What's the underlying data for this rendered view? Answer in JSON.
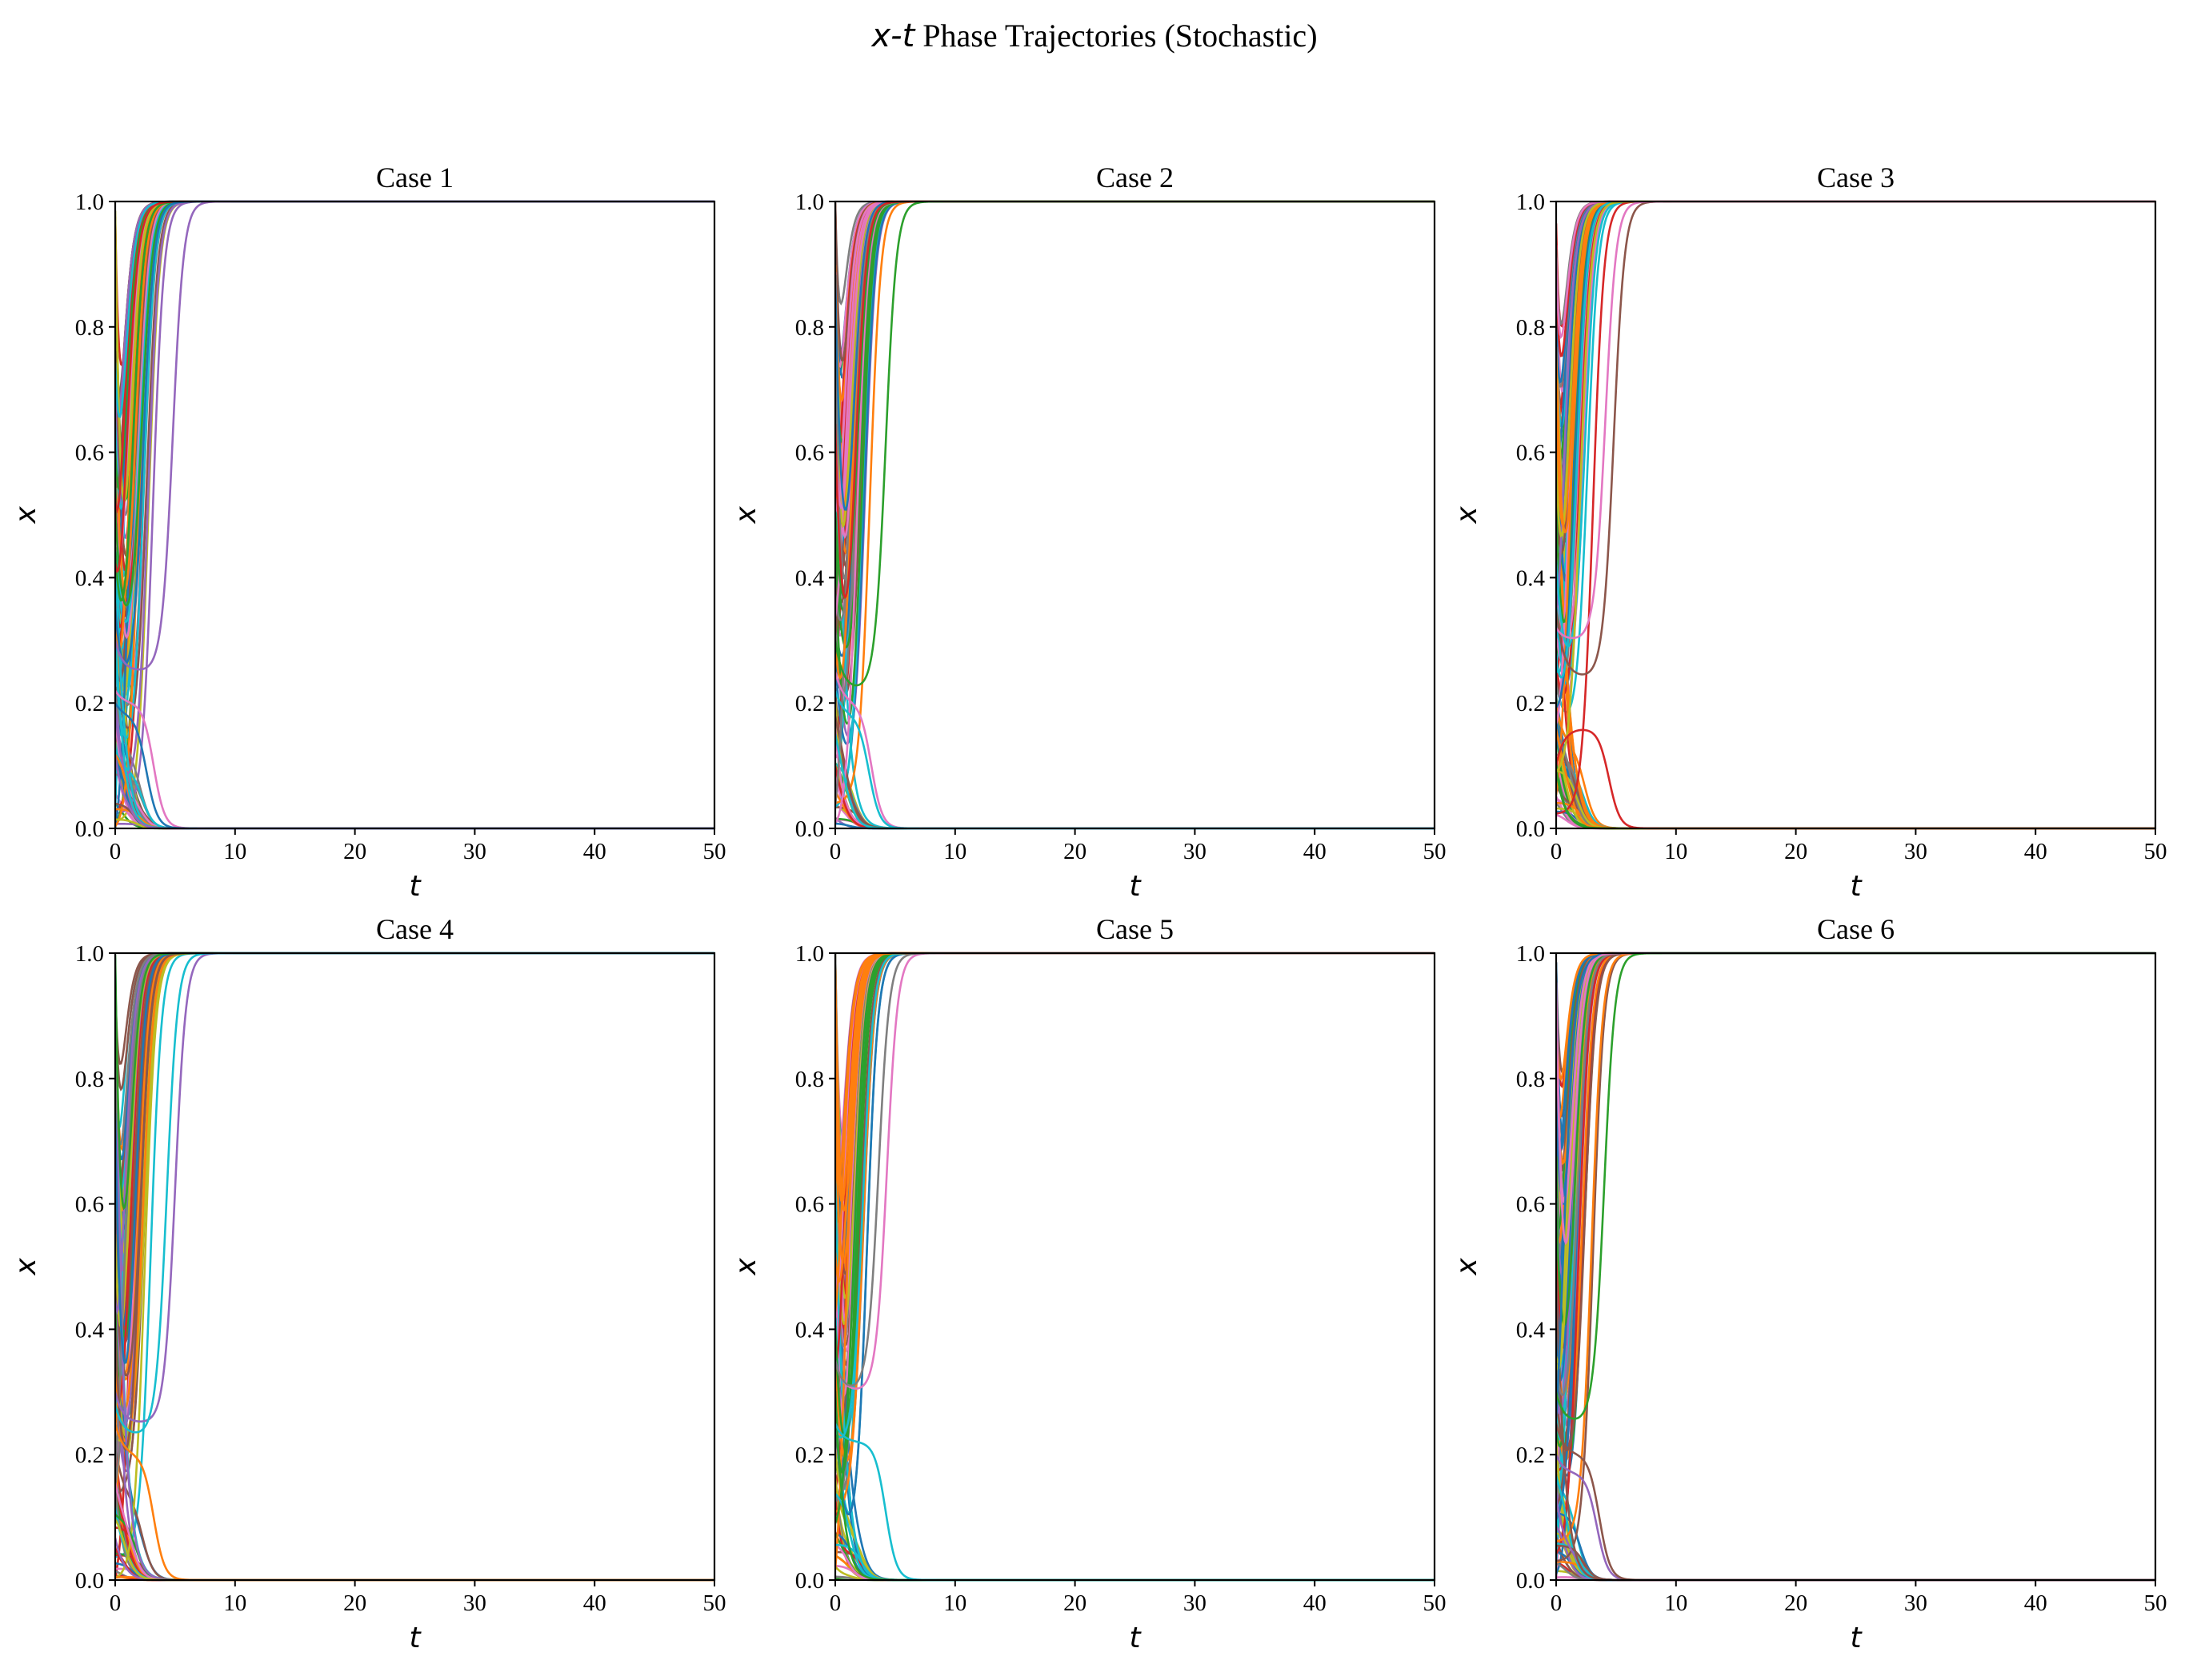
{
  "figure": {
    "suptitle_var": "x-t",
    "suptitle_rest": " Phase Trajectories (Stochastic)"
  },
  "chart_data": [
    {
      "type": "line",
      "title": "Case 1",
      "xlabel": "t",
      "ylabel": "x",
      "xlim": [
        0,
        50
      ],
      "ylim": [
        0,
        1
      ],
      "xticks": [
        "0",
        "10",
        "20",
        "30",
        "40",
        "50"
      ],
      "yticks": [
        "0.0",
        "0.2",
        "0.4",
        "0.6",
        "0.8",
        "1.0"
      ],
      "grid": false,
      "seed": 11,
      "num_trajectories": 100,
      "series": [
        {
          "name": "",
          "x0": 0.35,
          "t_mid": 2.3,
          "dip": 0.2,
          "t_dip": 1.2,
          "end": 1,
          "color": "#1f77b4"
        },
        {
          "name": "",
          "x0": 0.3,
          "t_mid": 4.8,
          "dip": 0.25,
          "t_dip": 2.4,
          "end": 1,
          "color": "#9467bd"
        },
        {
          "name": "",
          "x0": 0.22,
          "t_mid": 3.2,
          "dip": 0.2,
          "t_dip": 1.4,
          "end": 0,
          "color": "#e377c2"
        },
        {
          "name": "",
          "x0": 0.2,
          "t_mid": 2.6,
          "dip": 0.18,
          "t_dip": 1.0,
          "end": 0,
          "color": "#1f77b4"
        }
      ]
    },
    {
      "type": "line",
      "title": "Case 2",
      "xlabel": "t",
      "ylabel": "x",
      "xlim": [
        0,
        50
      ],
      "ylim": [
        0,
        1
      ],
      "xticks": [
        "0",
        "10",
        "20",
        "30",
        "40",
        "50"
      ],
      "yticks": [
        "0.0",
        "0.2",
        "0.4",
        "0.6",
        "0.8",
        "1.0"
      ],
      "grid": false,
      "seed": 23,
      "num_trajectories": 100,
      "series": [
        {
          "name": "",
          "x0": 0.3,
          "t_mid": 4.2,
          "dip": 0.22,
          "t_dip": 1.6,
          "end": 1,
          "color": "#2ca02c"
        },
        {
          "name": "",
          "x0": 0.25,
          "t_mid": 3.0,
          "dip": 0.2,
          "t_dip": 1.5,
          "end": 0,
          "color": "#e377c2"
        },
        {
          "name": "",
          "x0": 0.22,
          "t_mid": 2.8,
          "dip": 0.18,
          "t_dip": 1.2,
          "end": 0,
          "color": "#17becf"
        }
      ]
    },
    {
      "type": "line",
      "title": "Case 3",
      "xlabel": "t",
      "ylabel": "x",
      "xlim": [
        0,
        50
      ],
      "ylim": [
        0,
        1
      ],
      "xticks": [
        "0",
        "10",
        "20",
        "30",
        "40",
        "50"
      ],
      "yticks": [
        "0.0",
        "0.2",
        "0.4",
        "0.6",
        "0.8",
        "1.0"
      ],
      "grid": false,
      "seed": 37,
      "num_trajectories": 100,
      "series": [
        {
          "name": "",
          "x0": 0.35,
          "t_mid": 4.8,
          "dip": 0.24,
          "t_dip": 2.6,
          "end": 1,
          "color": "#8c564b"
        },
        {
          "name": "",
          "x0": 0.1,
          "t_mid": 4.4,
          "dip": 0.16,
          "t_dip": 2.0,
          "end": 0,
          "color": "#d62728"
        },
        {
          "name": "",
          "x0": 0.32,
          "t_mid": 4.1,
          "dip": 0.3,
          "t_dip": 1.5,
          "end": 1,
          "color": "#e377c2"
        }
      ]
    },
    {
      "type": "line",
      "title": "Case 4",
      "xlabel": "t",
      "ylabel": "x",
      "xlim": [
        0,
        50
      ],
      "ylim": [
        0,
        1
      ],
      "xticks": [
        "0",
        "10",
        "20",
        "30",
        "40",
        "50"
      ],
      "yticks": [
        "0.0",
        "0.2",
        "0.4",
        "0.6",
        "0.8",
        "1.0"
      ],
      "grid": false,
      "seed": 41,
      "num_trajectories": 100,
      "series": [
        {
          "name": "",
          "x0": 0.3,
          "t_mid": 5.0,
          "dip": 0.25,
          "t_dip": 2.5,
          "end": 1,
          "color": "#9467bd"
        },
        {
          "name": "",
          "x0": 0.28,
          "t_mid": 4.3,
          "dip": 0.23,
          "t_dip": 1.2,
          "end": 1,
          "color": "#17becf"
        },
        {
          "name": "",
          "x0": 0.25,
          "t_mid": 3.2,
          "dip": 0.2,
          "t_dip": 1.5,
          "end": 0,
          "color": "#ff7f0e"
        }
      ]
    },
    {
      "type": "line",
      "title": "Case 5",
      "xlabel": "t",
      "ylabel": "x",
      "xlim": [
        0,
        50
      ],
      "ylim": [
        0,
        1
      ],
      "xticks": [
        "0",
        "10",
        "20",
        "30",
        "40",
        "50"
      ],
      "yticks": [
        "0.0",
        "0.2",
        "0.4",
        "0.6",
        "0.8",
        "1.0"
      ],
      "grid": false,
      "seed": 53,
      "num_trajectories": 100,
      "series": [
        {
          "name": "",
          "x0": 0.25,
          "t_mid": 4.2,
          "dip": 0.22,
          "t_dip": 1.3,
          "end": 0,
          "color": "#17becf"
        },
        {
          "name": "",
          "x0": 0.35,
          "t_mid": 4.3,
          "dip": 0.3,
          "t_dip": 1.8,
          "end": 1,
          "color": "#e377c2"
        },
        {
          "name": "",
          "x0": 0.35,
          "t_mid": 3.6,
          "dip": 0.3,
          "t_dip": 1.5,
          "end": 1,
          "color": "#7f7f7f"
        }
      ]
    },
    {
      "type": "line",
      "title": "Case 6",
      "xlabel": "t",
      "ylabel": "x",
      "xlim": [
        0,
        50
      ],
      "ylim": [
        0,
        1
      ],
      "xticks": [
        "0",
        "10",
        "20",
        "30",
        "40",
        "50"
      ],
      "yticks": [
        "0.0",
        "0.2",
        "0.4",
        "0.6",
        "0.8",
        "1.0"
      ],
      "grid": false,
      "seed": 67,
      "num_trajectories": 100,
      "series": [
        {
          "name": "",
          "x0": 0.3,
          "t_mid": 4.0,
          "dip": 0.25,
          "t_dip": 1.3,
          "end": 1,
          "color": "#2ca02c"
        },
        {
          "name": "",
          "x0": 0.2,
          "t_mid": 3.4,
          "dip": 0.17,
          "t_dip": 1.5,
          "end": 0,
          "color": "#9467bd"
        },
        {
          "name": "",
          "x0": 0.25,
          "t_mid": 3.6,
          "dip": 0.2,
          "t_dip": 1.0,
          "end": 0,
          "color": "#8c564b"
        }
      ]
    }
  ],
  "palette": [
    "#1f77b4",
    "#ff7f0e",
    "#2ca02c",
    "#d62728",
    "#9467bd",
    "#8c564b",
    "#e377c2",
    "#7f7f7f",
    "#bcbd22",
    "#17becf"
  ]
}
